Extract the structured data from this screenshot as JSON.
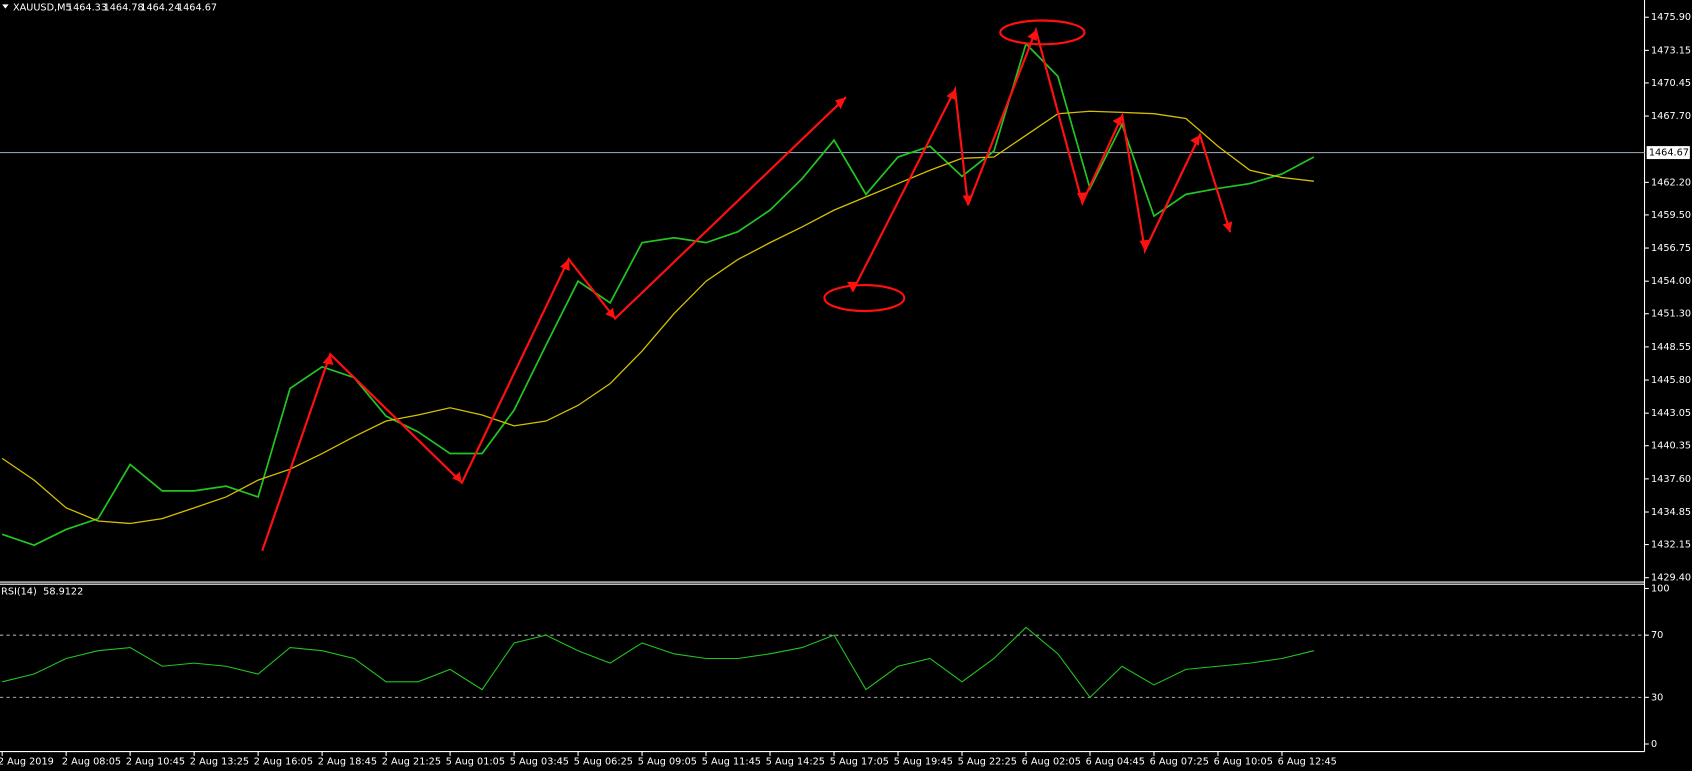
{
  "chart_data": [
    {
      "type": "line",
      "symbol": "XAUUSD,M5",
      "ohlc": [
        1464.33,
        1464.78,
        1464.24,
        1464.67
      ],
      "current_price": 1464.67,
      "ylim": [
        1429.22,
        1477.33
      ],
      "yticks": [
        {
          "value": 1475.9,
          "label": "1475.90"
        },
        1473.15,
        1470.45,
        {
          "value": 1467.7,
          "label": "1467.70"
        },
        {
          "value": 1462.2,
          "label": "1462.20"
        },
        {
          "value": 1459.5,
          "label": "1459.50"
        },
        1456.75,
        {
          "value": 1454,
          "label": "1454.00"
        },
        {
          "value": 1451.3,
          "label": "1451.30"
        },
        1448.55,
        {
          "value": 1445.8,
          "label": "1445.80"
        },
        1443.05,
        1440.35,
        {
          "value": 1437.6,
          "label": "1437.60"
        },
        1434.85,
        1432.15,
        {
          "value": 1429.4,
          "label": "1429.40"
        }
      ],
      "series": [
        {
          "color": "#22c422",
          "values": [
            1433.0,
            1432.1,
            1433.4,
            1434.3,
            1438.8,
            1436.6,
            1436.6,
            1437.0,
            1436.1,
            1445.1,
            1446.9,
            1446.0,
            1442.8,
            1441.5,
            1439.7,
            1439.7,
            1443.3,
            1448.7,
            1454.0,
            1452.2,
            1457.2,
            1457.6,
            1457.2,
            1458.1,
            1459.9,
            1462.5,
            1465.7,
            1461.2,
            1464.3,
            1465.2,
            1462.7,
            1464.8,
            1473.7,
            1471.0,
            1461.7,
            1467.0,
            1459.4,
            1461.2,
            1461.7,
            1462.1,
            1462.9,
            1464.3
          ]
        },
        {
          "color": "#d4c000",
          "values": [
            1439.3,
            1437.5,
            1435.2,
            1434.1,
            1433.9,
            1434.3,
            1435.2,
            1436.1,
            1437.5,
            1438.4,
            1439.7,
            1441.1,
            1442.4,
            1442.9,
            1443.5,
            1442.9,
            1442.0,
            1442.4,
            1443.7,
            1445.5,
            1448.2,
            1451.3,
            1454.0,
            1455.8,
            1457.2,
            1458.5,
            1459.9,
            1461.0,
            1462.1,
            1463.2,
            1464.2,
            1464.3,
            1466.1,
            1467.9,
            1468.1,
            1468.0,
            1467.9,
            1467.5,
            1465.2,
            1463.2,
            1462.6,
            1462.3
          ]
        }
      ]
    },
    {
      "type": "line",
      "title": "RSI(14)",
      "last_value": 58.9122,
      "ylim": [
        0,
        100
      ],
      "yticks": [
        0,
        30,
        70,
        100
      ],
      "color": "#22c422",
      "categories": [
        "2 Aug 2019",
        null,
        "2 Aug 08:05",
        null,
        "2 Aug 10:45",
        null,
        "2 Aug 13:25",
        null,
        "2 Aug 16:05",
        null,
        "2 Aug 18:45",
        null,
        "2 Aug 21:25",
        null,
        "5 Aug 01:05",
        null,
        "5 Aug 03:45",
        null,
        "5 Aug 06:25",
        null,
        "5 Aug 09:05",
        null,
        "5 Aug 11:45",
        null,
        "5 Aug 14:25",
        null,
        "5 Aug 17:05",
        null,
        "5 Aug 19:45",
        null,
        "5 Aug 22:25",
        null,
        "6 Aug 02:05",
        null,
        "6 Aug 04:45",
        null,
        "6 Aug 07:25",
        null,
        "6 Aug 10:05",
        null,
        "6 Aug 12:45",
        null
      ],
      "values": [
        40,
        45,
        55,
        60,
        62,
        50,
        52,
        50,
        45,
        62,
        60,
        55,
        40,
        40,
        48,
        35,
        65,
        70,
        60,
        52,
        65,
        58,
        55,
        55,
        58,
        62,
        70,
        35,
        50,
        55,
        40,
        55,
        75,
        58,
        30,
        50,
        38,
        48,
        50,
        52,
        55,
        60
      ]
    }
  ]
}
